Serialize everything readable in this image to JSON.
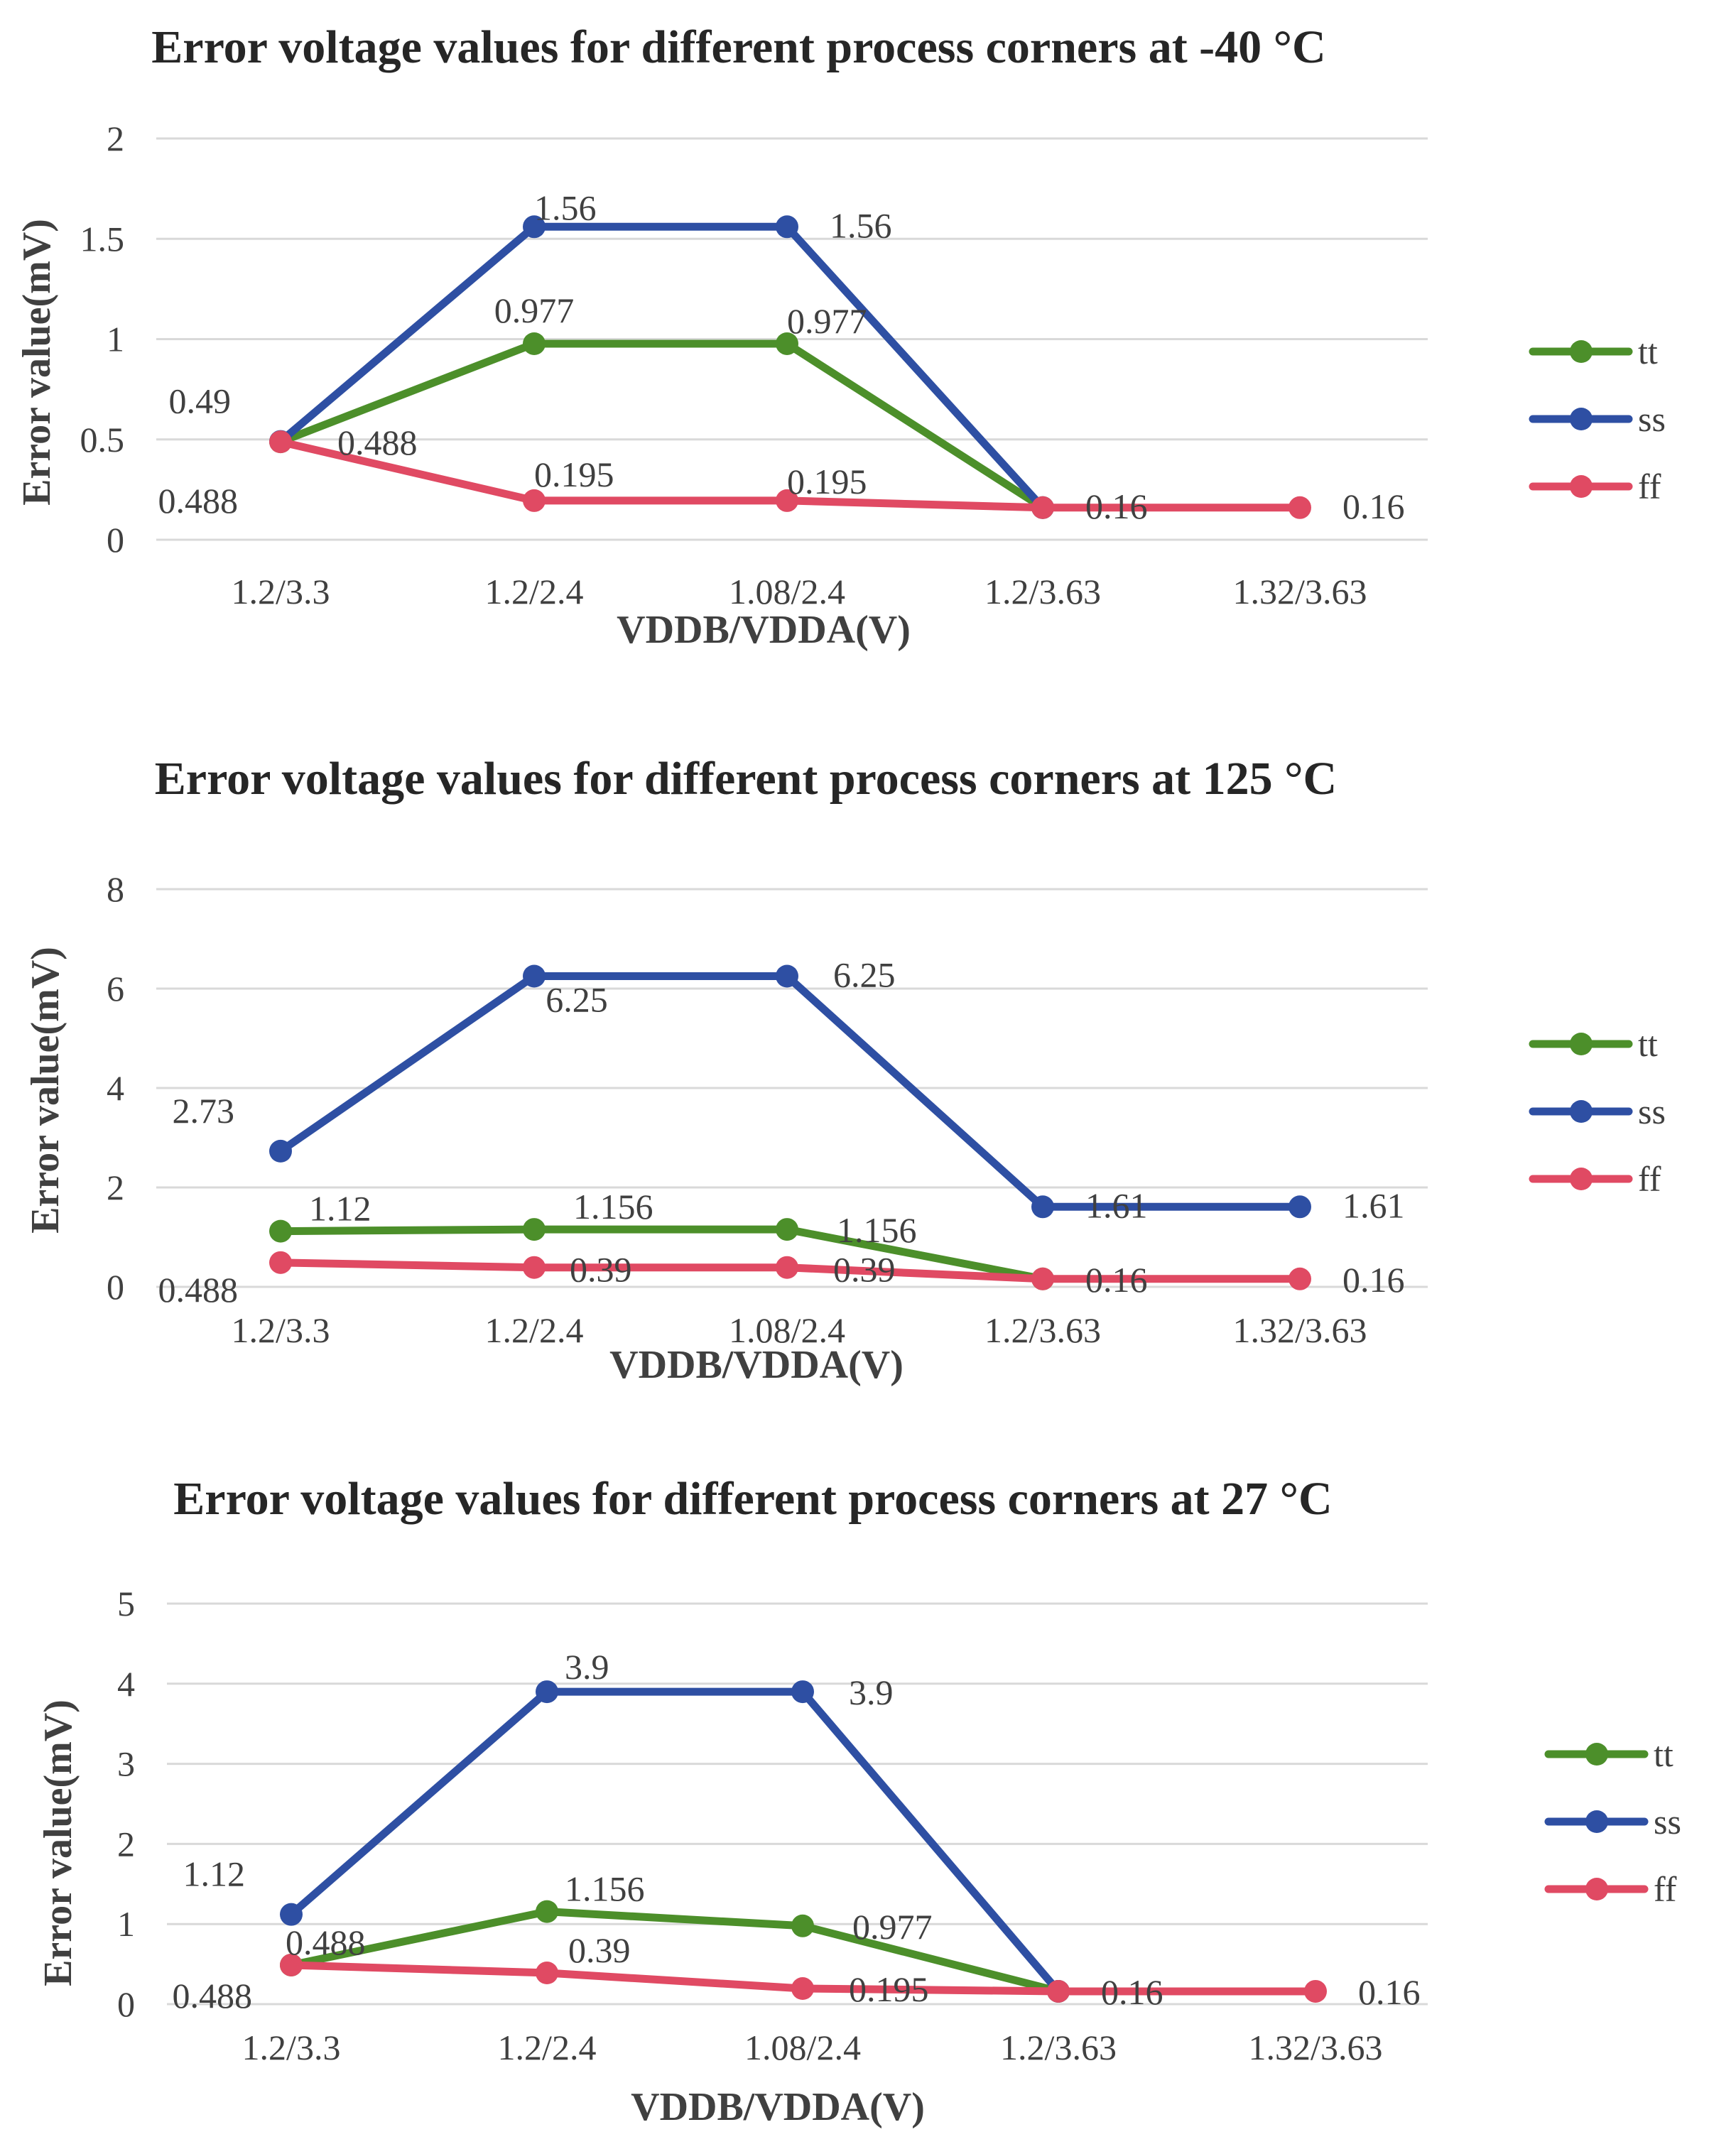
{
  "colors": {
    "tt": "#4c8f2a",
    "ss": "#2e4fa3",
    "ff": "#e04a63"
  },
  "chart_data": [
    {
      "type": "line",
      "title": "Error voltage values for different process corners at -40 °C",
      "xlabel": "VDDB/VDDA(V)",
      "ylabel": "Error value(mV)",
      "categories": [
        "1.2/3.3",
        "1.2/2.4",
        "1.08/2.4",
        "1.2/3.63",
        "1.32/3.63"
      ],
      "ylim": [
        0,
        2
      ],
      "yticks": [
        "0",
        "0.5",
        "1",
        "1.5",
        "2"
      ],
      "legend": "right",
      "series": [
        {
          "name": "tt",
          "values": [
            0.488,
            0.977,
            0.977,
            0.16,
            null
          ],
          "labels": [
            "0.488",
            "0.977",
            "0.977",
            "",
            ""
          ]
        },
        {
          "name": "ss",
          "values": [
            0.49,
            1.56,
            1.56,
            0.16,
            null
          ],
          "labels": [
            "0.49",
            "1.56",
            "1.56",
            "",
            ""
          ]
        },
        {
          "name": "ff",
          "values": [
            0.488,
            0.195,
            0.195,
            0.16,
            0.16
          ],
          "labels": [
            "0.488",
            "0.195",
            "0.195",
            "0.16",
            "0.16"
          ]
        }
      ]
    },
    {
      "type": "line",
      "title": "Error voltage values for different process corners at 125 °C",
      "xlabel": "VDDB/VDDA(V)",
      "ylabel": "Error value(mV)",
      "categories": [
        "1.2/3.3",
        "1.2/2.4",
        "1.08/2.4",
        "1.2/3.63",
        "1.32/3.63"
      ],
      "ylim": [
        0,
        8
      ],
      "yticks": [
        "0",
        "2",
        "4",
        "6",
        "8"
      ],
      "legend": "right",
      "series": [
        {
          "name": "tt",
          "values": [
            1.12,
            1.156,
            1.156,
            0.16,
            null
          ],
          "labels": [
            "1.12",
            "1.156",
            "1.156",
            "",
            ""
          ]
        },
        {
          "name": "ss",
          "values": [
            2.73,
            6.25,
            6.25,
            1.61,
            1.61
          ],
          "labels": [
            "2.73",
            "6.25",
            "6.25",
            "1.61",
            "1.61"
          ]
        },
        {
          "name": "ff",
          "values": [
            0.488,
            0.39,
            0.39,
            0.16,
            0.16
          ],
          "labels": [
            "0.488",
            "0.39",
            "0.39",
            "0.16",
            "0.16"
          ]
        }
      ]
    },
    {
      "type": "line",
      "title": "Error voltage values for different process corners at 27 °C",
      "xlabel": "VDDB/VDDA(V)",
      "ylabel": "Error value(mV)",
      "categories": [
        "1.2/3.3",
        "1.2/2.4",
        "1.08/2.4",
        "1.2/3.63",
        "1.32/3.63"
      ],
      "ylim": [
        0,
        5
      ],
      "yticks": [
        "0",
        "1",
        "2",
        "3",
        "4",
        "5"
      ],
      "legend": "right",
      "series": [
        {
          "name": "tt",
          "values": [
            0.488,
            1.156,
            0.977,
            0.16,
            null
          ],
          "labels": [
            "0.488",
            "1.156",
            "0.977",
            "",
            ""
          ]
        },
        {
          "name": "ss",
          "values": [
            1.12,
            3.9,
            3.9,
            0.16,
            null
          ],
          "labels": [
            "1.12",
            "3.9",
            "3.9",
            "",
            ""
          ]
        },
        {
          "name": "ff",
          "values": [
            0.488,
            0.39,
            0.195,
            0.16,
            0.16
          ],
          "labels": [
            "0.488",
            "0.39",
            "0.195",
            "0.16",
            "0.16"
          ]
        }
      ]
    }
  ]
}
